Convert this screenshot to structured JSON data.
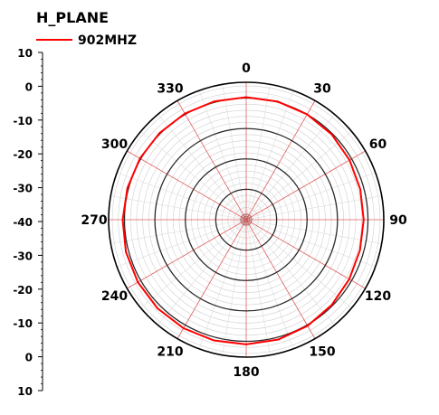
{
  "chart_data": {
    "type": "polar",
    "title": "H_PLANE",
    "legend": {
      "position": "top-left",
      "entries": [
        {
          "label": "902MHZ",
          "color": "#ff0000"
        }
      ]
    },
    "angle_labels": [
      "0",
      "30",
      "60",
      "90",
      "120",
      "150",
      "180",
      "210",
      "240",
      "270",
      "300",
      "330"
    ],
    "radial_scale": {
      "rlim": [
        -40,
        0
      ],
      "rings": [
        -40,
        -30,
        -20,
        -10,
        0
      ],
      "axis_tick_labels": [
        "10",
        "0",
        "-10",
        "-20",
        "-30",
        "-40",
        "-30",
        "-20",
        "-10",
        "0",
        "10"
      ]
    },
    "grid": true,
    "series": [
      {
        "name": "902MHZ",
        "color": "#ff0000",
        "unit": "dB",
        "angle": [
          0,
          15,
          30,
          45,
          60,
          75,
          90,
          105,
          120,
          135,
          150,
          165,
          180,
          195,
          210,
          225,
          240,
          255,
          270,
          285,
          300,
          315,
          330,
          345
        ],
        "values": [
          0.3,
          0.2,
          0.0,
          -0.3,
          -0.8,
          -1.2,
          -1.4,
          -1.3,
          -0.9,
          -0.3,
          0.3,
          0.8,
          1.0,
          1.1,
          1.2,
          1.2,
          1.1,
          0.9,
          0.6,
          0.4,
          0.3,
          0.3,
          0.3,
          0.3
        ]
      }
    ]
  }
}
